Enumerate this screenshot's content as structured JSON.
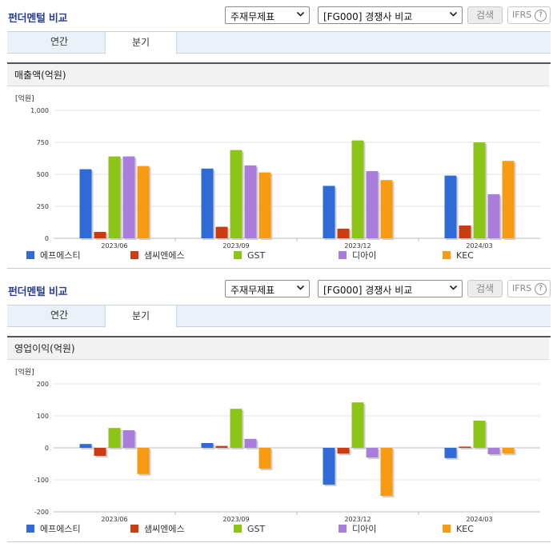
{
  "sections": [
    {
      "title": "펀더멘털 비교",
      "select_statement": "주재무제표",
      "select_compare": "[FG000] 경쟁사 비교",
      "search_label": "검색",
      "ifrs_label": "IFRS",
      "ifrs_help": "?",
      "tabs": [
        "연간",
        "분기"
      ],
      "active_tab": 1,
      "chart_title": "매출액(억원)"
    },
    {
      "title": "펀더멘털 비교",
      "select_statement": "주재무제표",
      "select_compare": "[FG000] 경쟁사 비교",
      "search_label": "검색",
      "ifrs_label": "IFRS",
      "ifrs_help": "?",
      "tabs": [
        "연간",
        "분기"
      ],
      "active_tab": 1,
      "chart_title": "영업이익(억원)"
    }
  ],
  "colors": {
    "series": [
      "#2f6ad6",
      "#cc3b12",
      "#8cc417",
      "#a87ddc",
      "#f79b12"
    ],
    "title": "#2b3f8c",
    "tab_bar": "#eaf0f7"
  },
  "chart_data": [
    {
      "type": "bar",
      "unit_label": "[억원]",
      "categories": [
        "2023/06",
        "2023/09",
        "2023/12",
        "2024/03"
      ],
      "ylim": [
        0,
        1000
      ],
      "yticks": [
        0,
        250,
        500,
        750,
        1000
      ],
      "ytick_labels": [
        "0",
        "250",
        "500",
        "750",
        "1,000"
      ],
      "grid": true,
      "legend_position": "bottom",
      "series": [
        {
          "name": "에프에스티",
          "values": [
            540,
            545,
            410,
            490
          ]
        },
        {
          "name": "샘씨엔에스",
          "values": [
            50,
            90,
            75,
            100
          ]
        },
        {
          "name": "GST",
          "values": [
            640,
            690,
            765,
            750
          ]
        },
        {
          "name": "디아이",
          "values": [
            640,
            570,
            525,
            345
          ]
        },
        {
          "name": "KEC",
          "values": [
            565,
            515,
            455,
            605
          ]
        }
      ]
    },
    {
      "type": "bar",
      "unit_label": "[억원]",
      "categories": [
        "2023/06",
        "2023/09",
        "2023/12",
        "2024/03"
      ],
      "ylim": [
        -200,
        200
      ],
      "yticks": [
        -200,
        -100,
        0,
        100,
        200
      ],
      "ytick_labels": [
        "-200",
        "-100",
        "0",
        "100",
        "200"
      ],
      "grid": true,
      "legend_position": "bottom",
      "series": [
        {
          "name": "에프에스티",
          "values": [
            12,
            15,
            -115,
            -32
          ]
        },
        {
          "name": "샘씨엔에스",
          "values": [
            -25,
            6,
            -18,
            4
          ]
        },
        {
          "name": "GST",
          "values": [
            62,
            122,
            142,
            85
          ]
        },
        {
          "name": "디아이",
          "values": [
            55,
            28,
            -30,
            -20
          ]
        },
        {
          "name": "KEC",
          "values": [
            -82,
            -65,
            -150,
            -18
          ]
        }
      ]
    }
  ]
}
